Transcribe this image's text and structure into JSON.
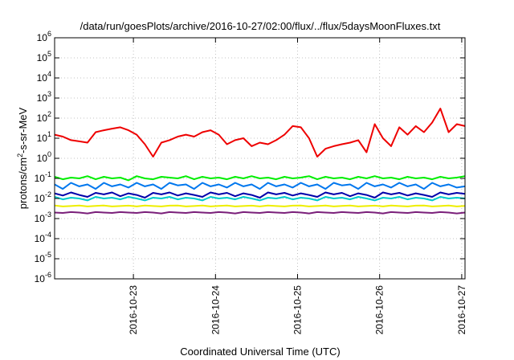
{
  "chart_data": {
    "type": "line",
    "title": "/data/run/goesPlots/archive/2016-10-27/02:00/flux/../flux/5daysMoonFluxes.txt",
    "xlabel": "Coordinated Universal Time (UTC)",
    "ylabel_base": "protons/cm",
    "ylabel_sup": "2",
    "ylabel_rest": "-s-sr-MeV",
    "yscale": "log",
    "ylim": [
      1e-06,
      1000000.0
    ],
    "xlim": [
      0.0,
      5.0
    ],
    "grid": true,
    "y_ticks": [
      {
        "value": 1e-06,
        "base": "10",
        "exp": "-6"
      },
      {
        "value": 1e-05,
        "base": "10",
        "exp": "-5"
      },
      {
        "value": 0.0001,
        "base": "10",
        "exp": "-4"
      },
      {
        "value": 0.001,
        "base": "10",
        "exp": "-3"
      },
      {
        "value": 0.01,
        "base": "10",
        "exp": "-2"
      },
      {
        "value": 0.1,
        "base": "10",
        "exp": "-1"
      },
      {
        "value": 1.0,
        "base": "10",
        "exp": "0"
      },
      {
        "value": 10.0,
        "base": "10",
        "exp": "1"
      },
      {
        "value": 100.0,
        "base": "10",
        "exp": "2"
      },
      {
        "value": 1000.0,
        "base": "10",
        "exp": "3"
      },
      {
        "value": 10000.0,
        "base": "10",
        "exp": "4"
      },
      {
        "value": 100000.0,
        "base": "10",
        "exp": "5"
      },
      {
        "value": 1000000.0,
        "base": "10",
        "exp": "6"
      }
    ],
    "x_ticks": [
      {
        "value": 0.96,
        "label": "2016-10-23"
      },
      {
        "value": 1.96,
        "label": "2016-10-24"
      },
      {
        "value": 2.96,
        "label": "2016-10-25"
      },
      {
        "value": 3.96,
        "label": "2016-10-26"
      },
      {
        "value": 4.96,
        "label": "2016-10-27"
      }
    ],
    "series": [
      {
        "color": "#ee0000",
        "x": [
          0.0,
          0.1,
          0.2,
          0.3,
          0.4,
          0.5,
          0.6,
          0.7,
          0.8,
          0.9,
          1.0,
          1.1,
          1.2,
          1.3,
          1.4,
          1.5,
          1.6,
          1.7,
          1.8,
          1.9,
          2.0,
          2.1,
          2.2,
          2.3,
          2.4,
          2.5,
          2.6,
          2.7,
          2.8,
          2.9,
          3.0,
          3.1,
          3.2,
          3.3,
          3.4,
          3.5,
          3.6,
          3.7,
          3.8,
          3.9,
          4.0,
          4.1,
          4.2,
          4.3,
          4.4,
          4.5,
          4.6,
          4.7,
          4.8,
          4.9,
          5.0
        ],
        "values": [
          15,
          12,
          8,
          7,
          6,
          20,
          25,
          30,
          35,
          25,
          15,
          5,
          1.2,
          6,
          8,
          12,
          15,
          12,
          20,
          25,
          15,
          5,
          8,
          10,
          4,
          6,
          5,
          8,
          15,
          40,
          35,
          10,
          1.2,
          3,
          4,
          5,
          6,
          8,
          2,
          50,
          10,
          4,
          35,
          15,
          40,
          20,
          60,
          300,
          20,
          50,
          40
        ]
      },
      {
        "color": "#00ee00",
        "x": [
          0.0,
          0.1,
          0.2,
          0.3,
          0.4,
          0.5,
          0.6,
          0.7,
          0.8,
          0.9,
          1.0,
          1.1,
          1.2,
          1.3,
          1.4,
          1.5,
          1.6,
          1.7,
          1.8,
          1.9,
          2.0,
          2.1,
          2.2,
          2.3,
          2.4,
          2.5,
          2.6,
          2.7,
          2.8,
          2.9,
          3.0,
          3.1,
          3.2,
          3.3,
          3.4,
          3.5,
          3.6,
          3.7,
          3.8,
          3.9,
          4.0,
          4.1,
          4.2,
          4.3,
          4.4,
          4.5,
          4.6,
          4.7,
          4.8,
          4.9,
          5.0
        ],
        "values": [
          0.12,
          0.09,
          0.11,
          0.1,
          0.13,
          0.09,
          0.12,
          0.1,
          0.11,
          0.08,
          0.13,
          0.1,
          0.09,
          0.12,
          0.11,
          0.1,
          0.13,
          0.09,
          0.12,
          0.1,
          0.11,
          0.09,
          0.12,
          0.1,
          0.13,
          0.1,
          0.11,
          0.09,
          0.12,
          0.1,
          0.11,
          0.13,
          0.09,
          0.12,
          0.1,
          0.11,
          0.09,
          0.12,
          0.1,
          0.13,
          0.1,
          0.11,
          0.09,
          0.12,
          0.1,
          0.11,
          0.09,
          0.12,
          0.1,
          0.11,
          0.13
        ]
      },
      {
        "color": "#0077ee",
        "x": [
          0.0,
          0.1,
          0.2,
          0.3,
          0.4,
          0.5,
          0.6,
          0.7,
          0.8,
          0.9,
          1.0,
          1.1,
          1.2,
          1.3,
          1.4,
          1.5,
          1.6,
          1.7,
          1.8,
          1.9,
          2.0,
          2.1,
          2.2,
          2.3,
          2.4,
          2.5,
          2.6,
          2.7,
          2.8,
          2.9,
          3.0,
          3.1,
          3.2,
          3.3,
          3.4,
          3.5,
          3.6,
          3.7,
          3.8,
          3.9,
          4.0,
          4.1,
          4.2,
          4.3,
          4.4,
          4.5,
          4.6,
          4.7,
          4.8,
          4.9,
          5.0
        ],
        "values": [
          0.05,
          0.03,
          0.06,
          0.04,
          0.05,
          0.03,
          0.06,
          0.04,
          0.05,
          0.035,
          0.06,
          0.04,
          0.05,
          0.03,
          0.06,
          0.045,
          0.05,
          0.03,
          0.06,
          0.04,
          0.05,
          0.035,
          0.06,
          0.04,
          0.05,
          0.03,
          0.06,
          0.04,
          0.05,
          0.035,
          0.06,
          0.04,
          0.05,
          0.03,
          0.06,
          0.045,
          0.05,
          0.03,
          0.06,
          0.04,
          0.05,
          0.035,
          0.06,
          0.04,
          0.05,
          0.03,
          0.06,
          0.04,
          0.05,
          0.035,
          0.04
        ]
      },
      {
        "color": "#00cccc",
        "x": [
          0.0,
          0.1,
          0.2,
          0.3,
          0.4,
          0.5,
          0.6,
          0.7,
          0.8,
          0.9,
          1.0,
          1.1,
          1.2,
          1.3,
          1.4,
          1.5,
          1.6,
          1.7,
          1.8,
          1.9,
          2.0,
          2.1,
          2.2,
          2.3,
          2.4,
          2.5,
          2.6,
          2.7,
          2.8,
          2.9,
          3.0,
          3.1,
          3.2,
          3.3,
          3.4,
          3.5,
          3.6,
          3.7,
          3.8,
          3.9,
          4.0,
          4.1,
          4.2,
          4.3,
          4.4,
          4.5,
          4.6,
          4.7,
          4.8,
          4.9,
          5.0
        ],
        "values": [
          0.012,
          0.009,
          0.011,
          0.01,
          0.008,
          0.012,
          0.01,
          0.011,
          0.009,
          0.012,
          0.01,
          0.008,
          0.011,
          0.01,
          0.012,
          0.009,
          0.011,
          0.01,
          0.008,
          0.012,
          0.01,
          0.011,
          0.009,
          0.012,
          0.01,
          0.008,
          0.011,
          0.01,
          0.012,
          0.009,
          0.011,
          0.01,
          0.008,
          0.012,
          0.01,
          0.011,
          0.009,
          0.012,
          0.01,
          0.008,
          0.011,
          0.01,
          0.012,
          0.009,
          0.011,
          0.01,
          0.008,
          0.012,
          0.01,
          0.011,
          0.01
        ]
      },
      {
        "color": "#0000aa",
        "x": [
          0.0,
          0.1,
          0.2,
          0.3,
          0.4,
          0.5,
          0.6,
          0.7,
          0.8,
          0.9,
          1.0,
          1.1,
          1.2,
          1.3,
          1.4,
          1.5,
          1.6,
          1.7,
          1.8,
          1.9,
          2.0,
          2.1,
          2.2,
          2.3,
          2.4,
          2.5,
          2.6,
          2.7,
          2.8,
          2.9,
          3.0,
          3.1,
          3.2,
          3.3,
          3.4,
          3.5,
          3.6,
          3.7,
          3.8,
          3.9,
          4.0,
          4.1,
          4.2,
          4.3,
          4.4,
          4.5,
          4.6,
          4.7,
          4.8,
          4.9,
          5.0
        ],
        "values": [
          0.018,
          0.014,
          0.02,
          0.015,
          0.012,
          0.019,
          0.016,
          0.02,
          0.013,
          0.018,
          0.015,
          0.011,
          0.019,
          0.016,
          0.02,
          0.014,
          0.018,
          0.015,
          0.012,
          0.02,
          0.016,
          0.019,
          0.013,
          0.018,
          0.015,
          0.011,
          0.02,
          0.016,
          0.019,
          0.014,
          0.018,
          0.015,
          0.012,
          0.02,
          0.016,
          0.019,
          0.013,
          0.018,
          0.015,
          0.011,
          0.02,
          0.016,
          0.019,
          0.014,
          0.018,
          0.015,
          0.012,
          0.02,
          0.016,
          0.019,
          0.017
        ]
      },
      {
        "color": "#eeee00",
        "x": [
          0.0,
          0.1,
          0.2,
          0.3,
          0.4,
          0.5,
          0.6,
          0.7,
          0.8,
          0.9,
          1.0,
          1.1,
          1.2,
          1.3,
          1.4,
          1.5,
          1.6,
          1.7,
          1.8,
          1.9,
          2.0,
          2.1,
          2.2,
          2.3,
          2.4,
          2.5,
          2.6,
          2.7,
          2.8,
          2.9,
          3.0,
          3.1,
          3.2,
          3.3,
          3.4,
          3.5,
          3.6,
          3.7,
          3.8,
          3.9,
          4.0,
          4.1,
          4.2,
          4.3,
          4.4,
          4.5,
          4.6,
          4.7,
          4.8,
          4.9,
          5.0
        ],
        "values": [
          0.0045,
          0.004,
          0.0042,
          0.0045,
          0.004,
          0.0043,
          0.0045,
          0.004,
          0.0042,
          0.0044,
          0.004,
          0.0045,
          0.0042,
          0.004,
          0.0044,
          0.0045,
          0.004,
          0.0042,
          0.0045,
          0.004,
          0.0043,
          0.0045,
          0.004,
          0.0042,
          0.0044,
          0.004,
          0.0045,
          0.0042,
          0.004,
          0.0044,
          0.0045,
          0.004,
          0.0042,
          0.0045,
          0.004,
          0.0043,
          0.0045,
          0.004,
          0.0042,
          0.0044,
          0.004,
          0.0045,
          0.0042,
          0.004,
          0.0044,
          0.0045,
          0.004,
          0.0042,
          0.0045,
          0.004,
          0.0043
        ]
      },
      {
        "color": "#7a1f7a",
        "x": [
          0.0,
          0.1,
          0.2,
          0.3,
          0.4,
          0.5,
          0.6,
          0.7,
          0.8,
          0.9,
          1.0,
          1.1,
          1.2,
          1.3,
          1.4,
          1.5,
          1.6,
          1.7,
          1.8,
          1.9,
          2.0,
          2.1,
          2.2,
          2.3,
          2.4,
          2.5,
          2.6,
          2.7,
          2.8,
          2.9,
          3.0,
          3.1,
          3.2,
          3.3,
          3.4,
          3.5,
          3.6,
          3.7,
          3.8,
          3.9,
          4.0,
          4.1,
          4.2,
          4.3,
          4.4,
          4.5,
          4.6,
          4.7,
          4.8,
          4.9,
          5.0
        ],
        "values": [
          0.002,
          0.0019,
          0.0021,
          0.002,
          0.0018,
          0.0021,
          0.002,
          0.0019,
          0.0021,
          0.002,
          0.0019,
          0.0021,
          0.002,
          0.0018,
          0.0021,
          0.002,
          0.0019,
          0.0021,
          0.002,
          0.0019,
          0.0021,
          0.002,
          0.0018,
          0.0021,
          0.002,
          0.0019,
          0.0021,
          0.002,
          0.0019,
          0.0021,
          0.002,
          0.0018,
          0.0021,
          0.002,
          0.0019,
          0.0021,
          0.002,
          0.0019,
          0.0021,
          0.002,
          0.0018,
          0.0021,
          0.002,
          0.0019,
          0.0021,
          0.002,
          0.0019,
          0.0021,
          0.002,
          0.0018,
          0.002
        ]
      }
    ]
  }
}
